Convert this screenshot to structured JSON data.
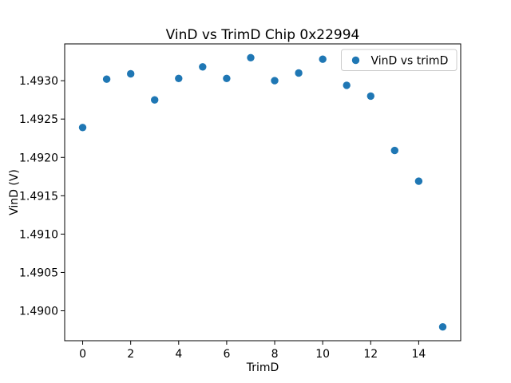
{
  "figure": {
    "background": "#ffffff"
  },
  "chart_data": {
    "type": "scatter",
    "title": "VinD vs TrimD Chip 0x22994",
    "xlabel": "TrimD",
    "ylabel": "VinD (V)",
    "legend": [
      {
        "label": "VinD vs trimD",
        "marker": "circle-icon"
      }
    ],
    "legend_position": "upper right",
    "marker_color": "#1f77b4",
    "axis_color": "#000000",
    "legend_border_color": "#cccccc",
    "grid": false,
    "x": [
      0,
      1,
      2,
      3,
      4,
      5,
      6,
      7,
      8,
      9,
      10,
      11,
      12,
      13,
      14,
      15
    ],
    "y": [
      1.49239,
      1.49302,
      1.49309,
      1.49275,
      1.49303,
      1.49318,
      1.49303,
      1.4933,
      1.493,
      1.4931,
      1.49328,
      1.49294,
      1.4928,
      1.49209,
      1.49169,
      1.48979
    ],
    "xlim": [
      -0.75,
      15.75
    ],
    "ylim": [
      1.48961,
      1.49348
    ],
    "xticks": [
      0,
      2,
      4,
      6,
      8,
      10,
      12,
      14
    ],
    "yticks": [
      1.49,
      1.4905,
      1.491,
      1.4915,
      1.492,
      1.4925,
      1.493
    ],
    "ytick_decimals": 4
  }
}
